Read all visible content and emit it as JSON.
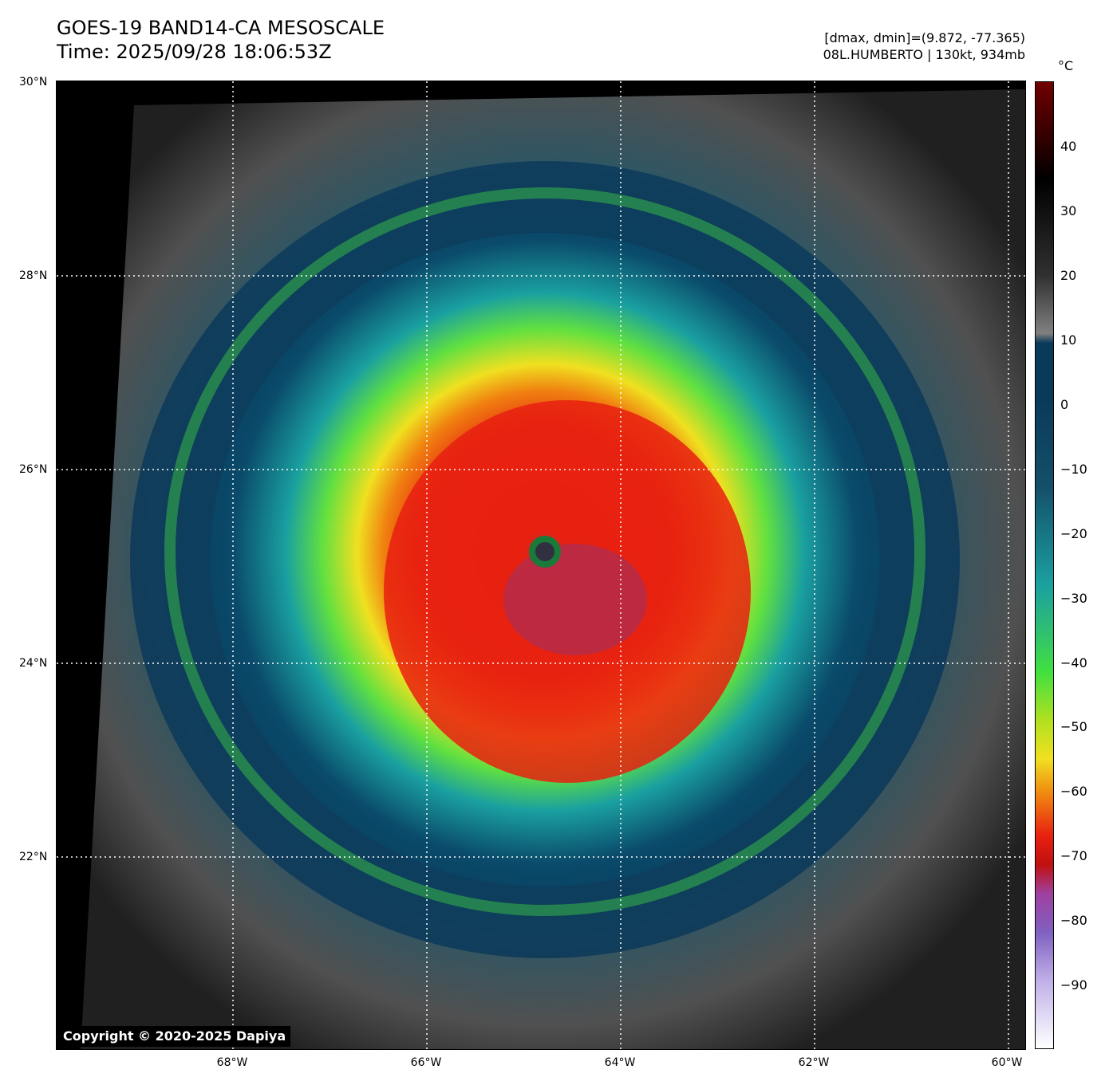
{
  "header": {
    "title_line1": "GOES-19 BAND14-CA MESOSCALE",
    "title_line2": "Time: 2025/09/28 18:06:53Z",
    "info_line1": "[dmax, dmin]=(9.872, -77.365)",
    "info_line2": "08L.HUMBERTO | 130kt, 934mb"
  },
  "map": {
    "copyright": "Copyright © 2020-2025 Dapiya",
    "lat_labels": [
      "30°N",
      "28°N",
      "26°N",
      "24°N",
      "22°N"
    ],
    "lon_labels": [
      "68°W",
      "66°W",
      "64°W",
      "62°W",
      "60°W"
    ],
    "storm_center": {
      "lat": 25.1,
      "lon": -64.9
    }
  },
  "colorbar": {
    "unit": "°C",
    "tick_labels": [
      "40",
      "30",
      "20",
      "10",
      "0",
      "−10",
      "−20",
      "−30",
      "−40",
      "−50",
      "−60",
      "−70",
      "−80",
      "−90"
    ],
    "range": [
      -100,
      50
    ],
    "colors": {
      "warm": "#ffffff",
      "gray": "#808080",
      "blue": "#0a3a5a",
      "teal": "#1aa0a0",
      "green": "#40e040",
      "yellow": "#f0e020",
      "orange": "#f08010",
      "red": "#e82010",
      "darkred": "#700000",
      "purple": "#8060c0"
    }
  }
}
